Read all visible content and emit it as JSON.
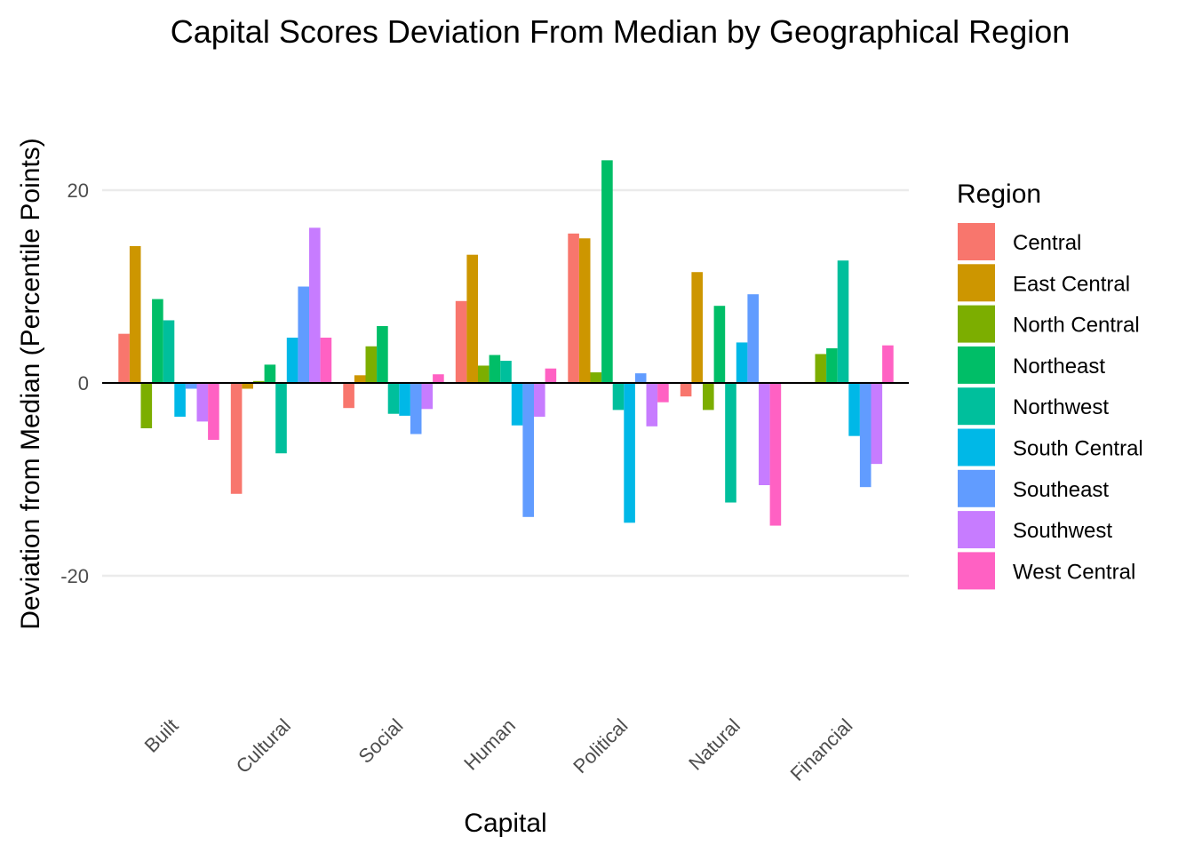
{
  "chart_data": {
    "type": "bar",
    "title": "Capital Scores Deviation From Median by Geographical Region",
    "xlabel": "Capital",
    "ylabel": "Deviation from Median (Percentile Points)",
    "categories": [
      "Built",
      "Cultural",
      "Social",
      "Human",
      "Political",
      "Natural",
      "Financial"
    ],
    "ylim": [
      -32,
      28
    ],
    "yticks": [
      -20,
      0,
      20
    ],
    "grid": "horizontal",
    "legend_title": "Region",
    "legend_position": "right",
    "series": [
      {
        "name": "Central",
        "color": "#F8766D",
        "values": [
          5.1,
          -11.5,
          -2.6,
          8.5,
          15.5,
          -1.4,
          0
        ]
      },
      {
        "name": "East Central",
        "color": "#CD9600",
        "values": [
          14.2,
          -0.6,
          0.8,
          13.3,
          15.0,
          11.5,
          0.1
        ]
      },
      {
        "name": "North Central",
        "color": "#7CAE00",
        "values": [
          -4.7,
          0.2,
          3.8,
          1.8,
          1.1,
          -2.8,
          3.0
        ]
      },
      {
        "name": "Northeast",
        "color": "#00BE67",
        "values": [
          8.7,
          1.9,
          5.9,
          2.9,
          23.1,
          8.0,
          3.6
        ]
      },
      {
        "name": "Northwest",
        "color": "#00BF9C",
        "values": [
          6.5,
          -7.3,
          -3.2,
          2.3,
          -2.8,
          -12.4,
          12.7
        ]
      },
      {
        "name": "South Central",
        "color": "#00B8E7",
        "values": [
          -3.5,
          4.7,
          -3.4,
          -4.4,
          -14.5,
          4.2,
          -5.5
        ]
      },
      {
        "name": "Southeast",
        "color": "#619CFF",
        "values": [
          -0.6,
          10.0,
          -5.3,
          -13.9,
          1.0,
          9.2,
          -10.8
        ]
      },
      {
        "name": "Southwest",
        "color": "#C77CFF",
        "values": [
          -4.0,
          16.1,
          -2.7,
          -3.5,
          -4.5,
          -10.6,
          -8.4
        ]
      },
      {
        "name": "West Central",
        "color": "#FF61C3",
        "values": [
          -5.9,
          4.7,
          0.9,
          1.5,
          -2.0,
          -14.8,
          3.9
        ]
      }
    ]
  }
}
